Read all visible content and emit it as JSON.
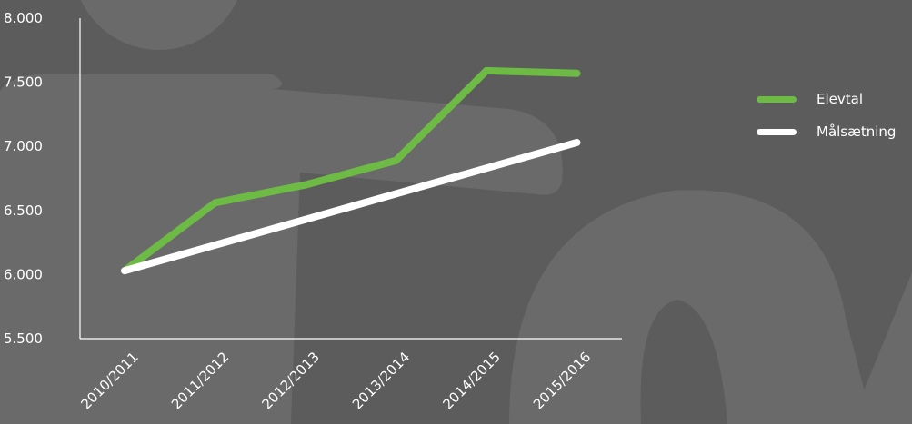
{
  "chart_data": {
    "type": "line",
    "categories": [
      "2010/2011",
      "2011/2012",
      "2012/2013",
      "2013/2014",
      "2014/2015",
      "2015/2016"
    ],
    "series": [
      {
        "name": "Elevtal",
        "color": "#6dbb45",
        "values": [
          6030,
          6560,
          6700,
          6890,
          7590,
          7570
        ]
      },
      {
        "name": "Målsætning",
        "color": "#ffffff",
        "values": [
          6030,
          6230,
          6430,
          6630,
          6830,
          7030
        ]
      }
    ],
    "ylim": [
      5500,
      8000
    ],
    "yticks": [
      "5.500",
      "6.000",
      "6.500",
      "7.000",
      "7.500",
      "8.000"
    ],
    "ytick_values": [
      5500,
      6000,
      6500,
      7000,
      7500,
      8000
    ],
    "legend_position": "right",
    "grid": false
  },
  "colors": {
    "background": "#5c5c5c",
    "watermark": "#6a6a6a",
    "axis": "#ffffff"
  }
}
